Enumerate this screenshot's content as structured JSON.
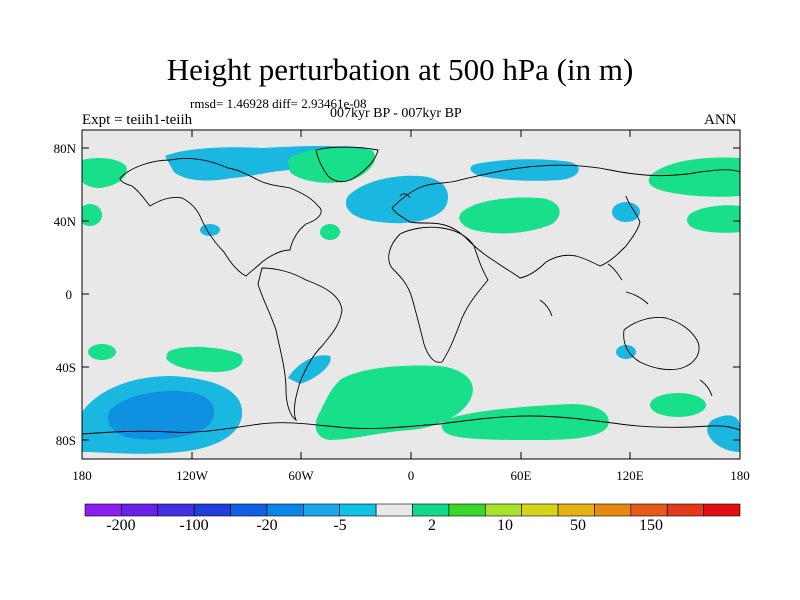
{
  "title": "Height perturbation at 500 hPa (in m)",
  "subtitle_stats": "rmsd= 1.46928 diff= 2.93461e-08",
  "subtitle_center": "007kyr BP - 007kyr BP",
  "expt_label": "Expt = teiih1-teiih",
  "season_label": "ANN",
  "axes": {
    "lat_ticks": [
      "80N",
      "40N",
      "0",
      "40S",
      "80S"
    ],
    "lon_ticks": [
      "180",
      "120W",
      "60W",
      "0",
      "60E",
      "120E",
      "180"
    ]
  },
  "colorbar": {
    "colors": [
      "#8a1ff0",
      "#6a20e6",
      "#4430e0",
      "#1f3fdc",
      "#1060e6",
      "#0a86e8",
      "#1aa6e8",
      "#10c2e4",
      "#e8e8e8",
      "#12d98a",
      "#3ad62a",
      "#a6e22a",
      "#d4d41a",
      "#e6b412",
      "#e88a12",
      "#e85a1a",
      "#e23a1a",
      "#e01010"
    ],
    "labels": [
      "-200",
      "-100",
      "-20",
      "-5",
      "2",
      "10",
      "50",
      "150"
    ]
  },
  "map_colors": {
    "background": "#e8e8e8",
    "light_blue": "#1ab8e0",
    "mid_blue": "#1090e0",
    "green": "#18e08a"
  }
}
